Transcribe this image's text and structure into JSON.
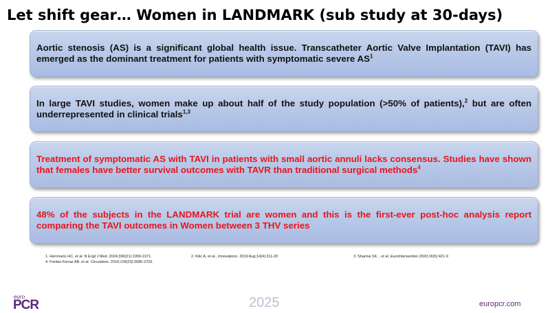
{
  "slide": {
    "title": "Let shift gear… Women in LANDMARK (sub study at 30-days)",
    "boxes": [
      {
        "text": "Aortic stenosis (AS) is a significant global health issue. Transcatheter Aortic Valve Implantation (TAVI) has emerged as the dominant treatment for patients with symptomatic severe AS",
        "sup": "1",
        "color": "#111111"
      },
      {
        "text": "In large TAVI studies, women make up about half of the study population (>50% of patients),",
        "sup": "2",
        "text2": " but are often underrepresented in clinical trials",
        "sup2": "1,3",
        "color": "#111111"
      },
      {
        "text": "Treatment of symptomatic AS with TAVI in patients with small aortic annuli lacks consensus. Studies have shown that females have better survival outcomes with TAVR than traditional surgical methods",
        "sup": "4",
        "color": "#e8151b"
      },
      {
        "text": "48% of the subjects in the LANDMARK trial are women and this is the first-ever post-hoc analysis report comparing the TAVI outcomes in Women between 3 THV series",
        "color": "#e8151b"
      }
    ],
    "references": {
      "ref1": "1. Herrmann HC, et al. N Engl J Med. 2024;390(21):1959-1971.",
      "ref2_a": "2. Kilic A, et al., ",
      "ref2_journal": "Innovations",
      "ref2_b": ". 2019 Aug;14(4):311-20",
      "ref3_a": "3. Sharma SK. ,  et al. ",
      "ref3_journal": "EuroIntervention",
      "ref3_b": " 2020;16(5):421-9",
      "ref4": "4. Freitas-Ferraz AB, et al. Circulation. 2019;139(23):2685-2702."
    }
  },
  "footer": {
    "logo_euro": "euro",
    "logo_pcr": "PCR",
    "year": "2025",
    "website": "europcr.com"
  },
  "colors": {
    "box_fill": "#b9c9e8",
    "red_text": "#e8151b",
    "brand_purple": "#5b2a78"
  }
}
